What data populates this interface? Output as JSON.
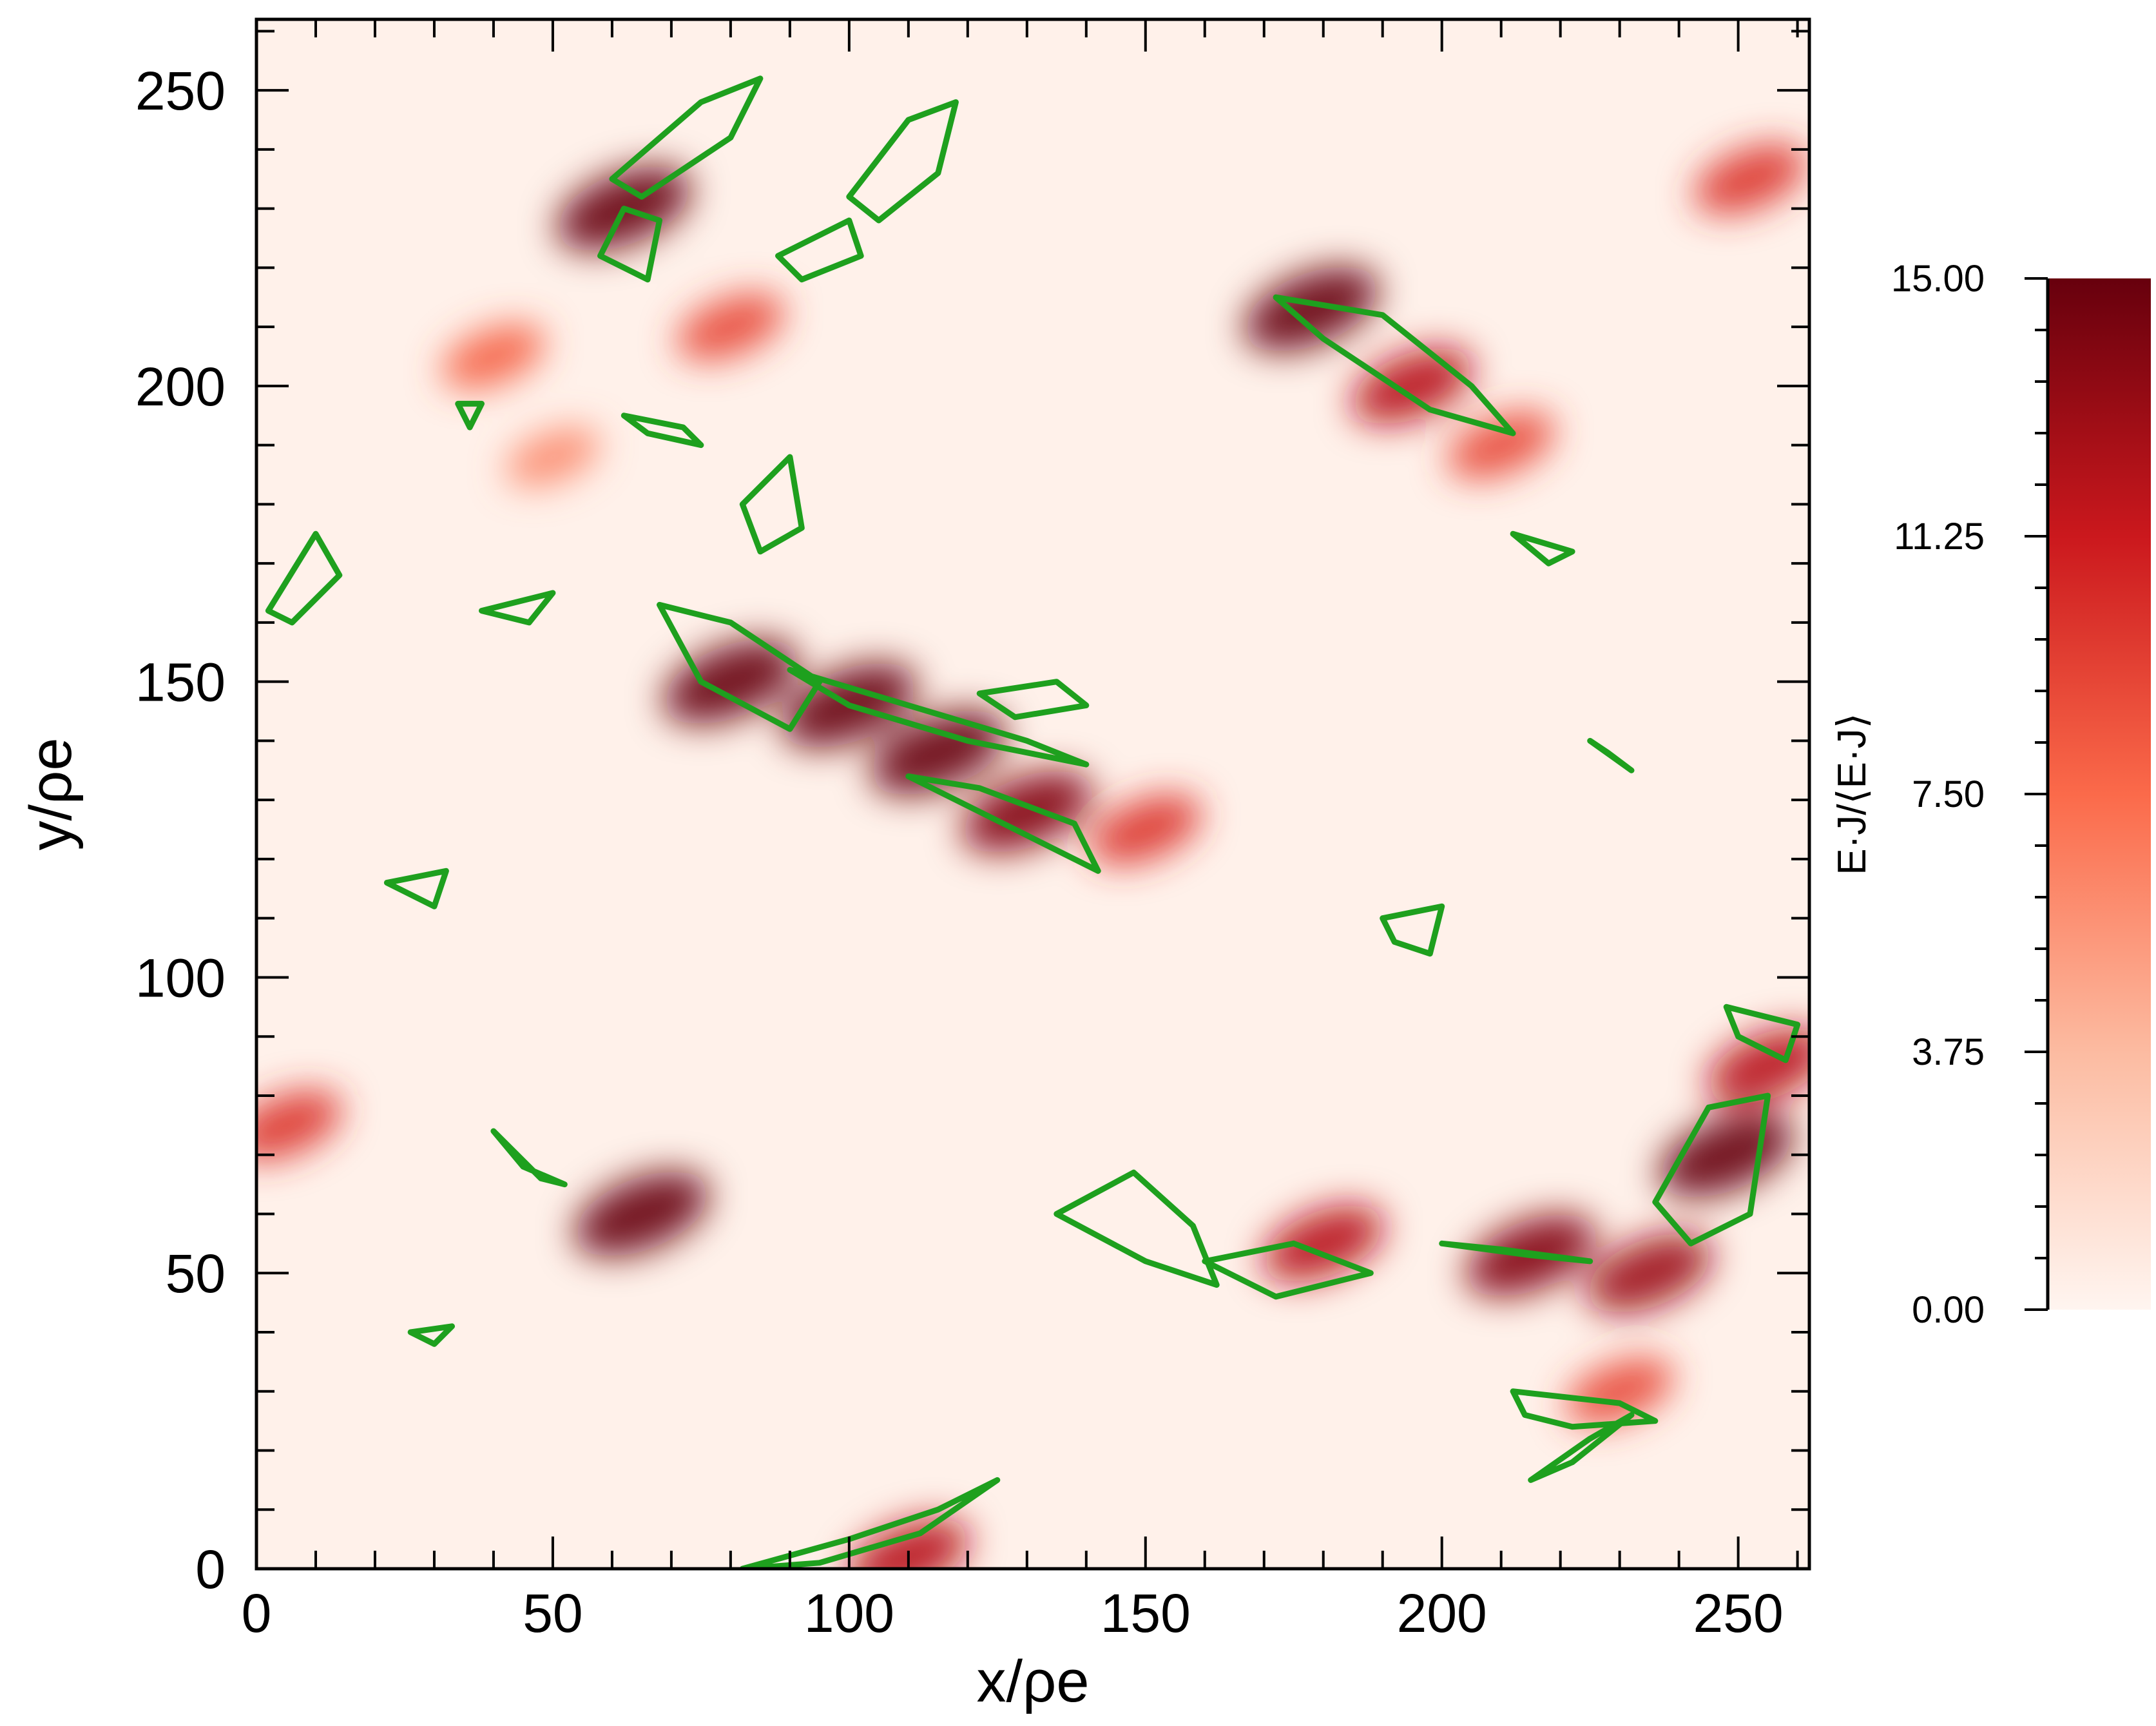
{
  "chart_data": {
    "type": "heatmap",
    "title": "",
    "xlabel": "x/ρe",
    "ylabel": "y/ρe",
    "xlim": [
      0,
      262
    ],
    "ylim": [
      0,
      262
    ],
    "x_ticks": [
      0,
      50,
      100,
      150,
      200,
      250
    ],
    "y_ticks": [
      0,
      50,
      100,
      150,
      200,
      250
    ],
    "colorbar": {
      "label": "E·J/⟨E·J⟩",
      "range": [
        0,
        15
      ],
      "ticks": [
        "0.00",
        "3.75",
        "7.50",
        "11.25",
        "15.00"
      ],
      "colormap": [
        "#fff5f0",
        "#fcbba1",
        "#fb6a4a",
        "#cb181d",
        "#67000d"
      ]
    },
    "contour_color": "#1ea01e",
    "hotspots": [
      {
        "x": 62,
        "y": 230,
        "value": 15
      },
      {
        "x": 80,
        "y": 210,
        "value": 9
      },
      {
        "x": 178,
        "y": 213,
        "value": 15
      },
      {
        "x": 195,
        "y": 200,
        "value": 12
      },
      {
        "x": 210,
        "y": 190,
        "value": 9
      },
      {
        "x": 80,
        "y": 150,
        "value": 15
      },
      {
        "x": 100,
        "y": 146,
        "value": 15
      },
      {
        "x": 115,
        "y": 138,
        "value": 15
      },
      {
        "x": 130,
        "y": 128,
        "value": 14
      },
      {
        "x": 150,
        "y": 125,
        "value": 10
      },
      {
        "x": 65,
        "y": 60,
        "value": 15
      },
      {
        "x": 215,
        "y": 53,
        "value": 14
      },
      {
        "x": 235,
        "y": 50,
        "value": 13
      },
      {
        "x": 248,
        "y": 70,
        "value": 15
      },
      {
        "x": 255,
        "y": 85,
        "value": 12
      },
      {
        "x": 110,
        "y": 2,
        "value": 12
      },
      {
        "x": 252,
        "y": 235,
        "value": 10
      },
      {
        "x": 5,
        "y": 75,
        "value": 10
      },
      {
        "x": 40,
        "y": 205,
        "value": 8
      },
      {
        "x": 50,
        "y": 188,
        "value": 6
      },
      {
        "x": 180,
        "y": 55,
        "value": 12
      },
      {
        "x": 230,
        "y": 30,
        "value": 9
      }
    ],
    "contours": [
      [
        [
          60,
          235
        ],
        [
          75,
          248
        ],
        [
          85,
          252
        ],
        [
          80,
          242
        ],
        [
          65,
          232
        ]
      ],
      [
        [
          58,
          222
        ],
        [
          62,
          230
        ],
        [
          68,
          228
        ],
        [
          66,
          218
        ]
      ],
      [
        [
          100,
          232
        ],
        [
          110,
          245
        ],
        [
          118,
          248
        ],
        [
          115,
          236
        ],
        [
          105,
          228
        ]
      ],
      [
        [
          88,
          222
        ],
        [
          100,
          228
        ],
        [
          102,
          222
        ],
        [
          92,
          218
        ]
      ],
      [
        [
          172,
          215
        ],
        [
          190,
          212
        ],
        [
          205,
          200
        ],
        [
          212,
          192
        ],
        [
          198,
          196
        ],
        [
          180,
          208
        ]
      ],
      [
        [
          68,
          163
        ],
        [
          80,
          160
        ],
        [
          95,
          150
        ],
        [
          90,
          142
        ],
        [
          75,
          150
        ]
      ],
      [
        [
          90,
          152
        ],
        [
          110,
          146
        ],
        [
          130,
          140
        ],
        [
          140,
          136
        ],
        [
          120,
          140
        ],
        [
          100,
          146
        ]
      ],
      [
        [
          110,
          134
        ],
        [
          130,
          124
        ],
        [
          142,
          118
        ],
        [
          138,
          126
        ],
        [
          122,
          132
        ]
      ],
      [
        [
          122,
          148
        ],
        [
          135,
          150
        ],
        [
          140,
          146
        ],
        [
          128,
          144
        ]
      ],
      [
        [
          38,
          162
        ],
        [
          50,
          165
        ],
        [
          46,
          160
        ]
      ],
      [
        [
          2,
          162
        ],
        [
          10,
          175
        ],
        [
          14,
          168
        ],
        [
          6,
          160
        ]
      ],
      [
        [
          22,
          116
        ],
        [
          32,
          118
        ],
        [
          30,
          112
        ]
      ],
      [
        [
          40,
          74
        ],
        [
          48,
          66
        ],
        [
          52,
          65
        ],
        [
          45,
          68
        ]
      ],
      [
        [
          26,
          40
        ],
        [
          33,
          41
        ],
        [
          30,
          38
        ]
      ],
      [
        [
          135,
          60
        ],
        [
          148,
          67
        ],
        [
          158,
          58
        ],
        [
          162,
          48
        ],
        [
          150,
          52
        ]
      ],
      [
        [
          160,
          52
        ],
        [
          175,
          55
        ],
        [
          188,
          50
        ],
        [
          172,
          46
        ]
      ],
      [
        [
          200,
          55
        ],
        [
          215,
          53
        ],
        [
          225,
          52
        ],
        [
          210,
          54
        ]
      ],
      [
        [
          236,
          62
        ],
        [
          245,
          78
        ],
        [
          255,
          80
        ],
        [
          252,
          60
        ],
        [
          242,
          55
        ]
      ],
      [
        [
          248,
          95
        ],
        [
          260,
          92
        ],
        [
          258,
          86
        ],
        [
          250,
          90
        ]
      ],
      [
        [
          212,
          30
        ],
        [
          230,
          28
        ],
        [
          236,
          25
        ],
        [
          222,
          24
        ],
        [
          214,
          26
        ]
      ],
      [
        [
          215,
          15
        ],
        [
          225,
          22
        ],
        [
          232,
          26
        ],
        [
          222,
          18
        ]
      ],
      [
        [
          212,
          175
        ],
        [
          222,
          172
        ],
        [
          218,
          170
        ]
      ],
      [
        [
          190,
          110
        ],
        [
          200,
          112
        ],
        [
          198,
          104
        ],
        [
          192,
          106
        ]
      ],
      [
        [
          225,
          140
        ],
        [
          232,
          135
        ],
        [
          228,
          138
        ]
      ],
      [
        [
          82,
          0
        ],
        [
          100,
          5
        ],
        [
          115,
          10
        ],
        [
          125,
          15
        ],
        [
          112,
          6
        ],
        [
          95,
          1
        ]
      ],
      [
        [
          34,
          197
        ],
        [
          36,
          193
        ],
        [
          38,
          197
        ]
      ],
      [
        [
          82,
          180
        ],
        [
          90,
          188
        ],
        [
          92,
          176
        ],
        [
          85,
          172
        ]
      ],
      [
        [
          62,
          195
        ],
        [
          72,
          193
        ],
        [
          75,
          190
        ],
        [
          66,
          192
        ]
      ]
    ]
  }
}
